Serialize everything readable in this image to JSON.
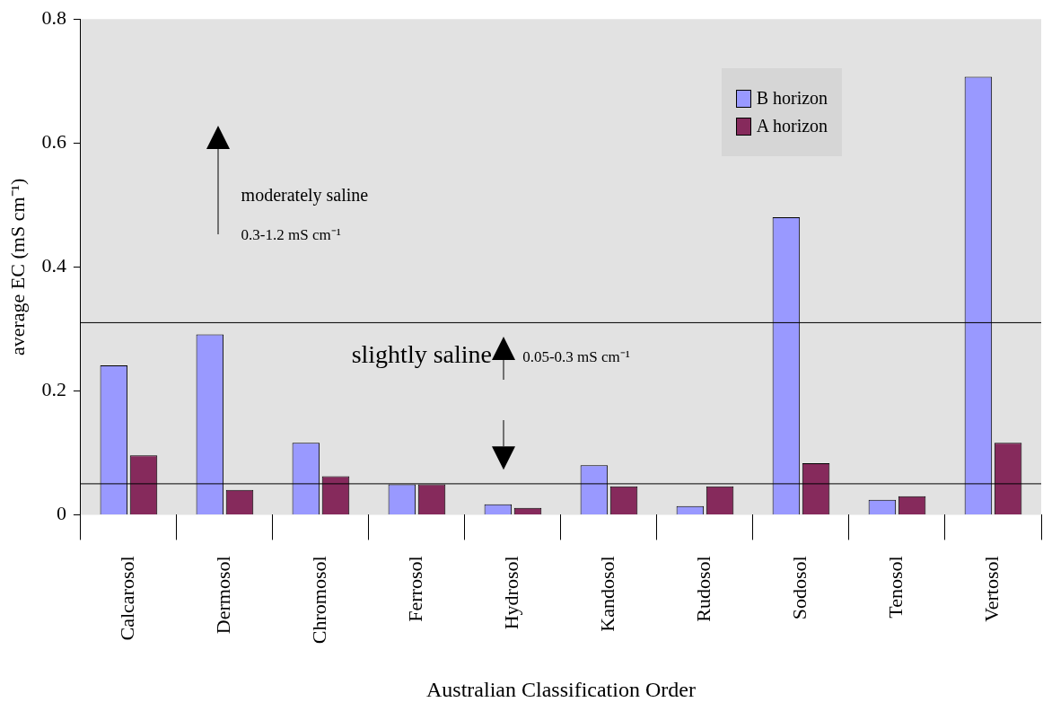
{
  "chart_data": {
    "type": "bar",
    "xlabel": "Australian Classification Order",
    "ylabel": "average EC (mS cm⁻¹)",
    "categories": [
      "Calcarosol",
      "Dermosol",
      "Chromosol",
      "Ferrosol",
      "Hydrosol",
      "Kandosol",
      "Rudosol",
      "Sodosol",
      "Tenosol",
      "Vertosol"
    ],
    "series": [
      {
        "name": "B horizon",
        "color": "#9999ff",
        "values": [
          0.241,
          0.291,
          0.116,
          0.049,
          0.017,
          0.08,
          0.014,
          0.48,
          0.024,
          0.707
        ]
      },
      {
        "name": "A horizon",
        "color": "#862a5c",
        "values": [
          0.096,
          0.04,
          0.062,
          0.049,
          0.011,
          0.046,
          0.046,
          0.083,
          0.03,
          0.116
        ]
      }
    ],
    "ylim": [
      0,
      0.8
    ],
    "yticks": [
      0,
      0.2,
      0.4,
      0.6,
      0.8
    ],
    "ref_lines": [
      {
        "axis": "y",
        "value": 0.31,
        "color": "#000000"
      },
      {
        "axis": "y",
        "value": 0.05,
        "color": "#000000"
      }
    ],
    "annotations": [
      "moderately saline",
      "0.3-1.2 mS cm⁻¹",
      "slightly saline",
      "0.05-0.3 mS cm⁻¹"
    ],
    "grid": false,
    "legend": "top right"
  }
}
